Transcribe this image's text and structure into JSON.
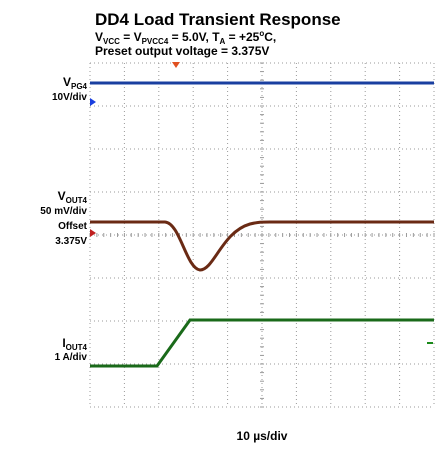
{
  "title": "DD4 Load Transient Response",
  "subtitle": {
    "line1": [
      "V",
      "VCC",
      " = V",
      "PVCC4",
      " = 5.0V, T",
      "A",
      " = +25",
      "o",
      "C,"
    ],
    "line2": "Preset output voltage = 3.375V"
  },
  "channels": [
    {
      "name": [
        "V",
        "PG4"
      ],
      "scale": "10V/div"
    },
    {
      "name": [
        "V",
        "OUT4"
      ],
      "scale": "50 mV/div",
      "offset_label": "Offset",
      "offset": "3.375V"
    },
    {
      "name": [
        "I",
        "OUT4"
      ],
      "scale": "1 A/div"
    }
  ],
  "timebase": "10 µs/div"
}
